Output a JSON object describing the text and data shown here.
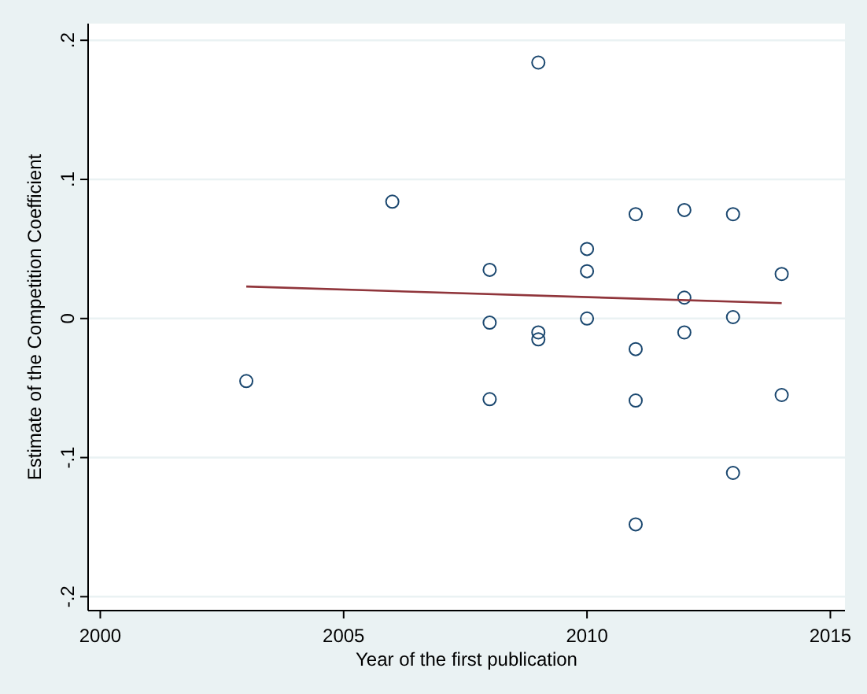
{
  "chart_data": {
    "type": "scatter",
    "xlabel": "Year of the first publication",
    "ylabel": "Estimate of the Competition Coefficient",
    "xlim": [
      1999.75,
      2015.3
    ],
    "xticks": [
      2000,
      2005,
      2010,
      2015
    ],
    "ylim": [
      -0.21,
      0.212
    ],
    "yticks": [
      {
        "value": 0.2,
        "label": ".2"
      },
      {
        "value": 0.1,
        "label": ".1"
      },
      0,
      {
        "value": -0.1,
        "label": "-.1"
      },
      {
        "value": -0.2,
        "label": "-.2"
      }
    ],
    "grid": "y",
    "series": [
      {
        "marker": "circle",
        "color": "#1a476f",
        "x": [
          2003,
          2006,
          2008,
          2008,
          2008,
          2009,
          2009,
          2009,
          2010,
          2010,
          2010,
          2011,
          2011,
          2011,
          2011,
          2012,
          2012,
          2012,
          2013,
          2013,
          2013,
          2014,
          2014
        ],
        "values": [
          -0.045,
          0.084,
          0.035,
          -0.003,
          -0.058,
          0.184,
          -0.01,
          -0.015,
          0.05,
          0.034,
          0,
          0.075,
          -0.022,
          -0.059,
          -0.148,
          0.078,
          0.015,
          -0.01,
          0.075,
          0.001,
          -0.111,
          0.032,
          -0.055
        ]
      },
      {
        "type": "line",
        "color": "#90353b",
        "x": [
          2003,
          2014
        ],
        "values": [
          0.023,
          0.011
        ]
      }
    ]
  }
}
